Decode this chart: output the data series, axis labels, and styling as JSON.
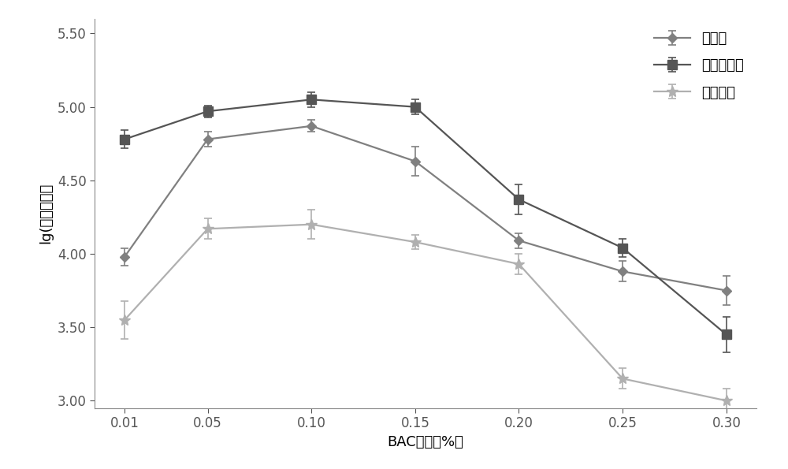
{
  "x": [
    0.01,
    0.05,
    0.1,
    0.15,
    0.2,
    0.25,
    0.3
  ],
  "x_labels": [
    "0.01",
    "0.05",
    "0.10",
    "0.15",
    "0.20",
    "0.25",
    "0.30"
  ],
  "series": [
    {
      "name": "黑曲霉",
      "y": [
        3.98,
        4.78,
        4.87,
        4.63,
        4.09,
        3.88,
        3.75
      ],
      "yerr": [
        0.06,
        0.05,
        0.04,
        0.1,
        0.05,
        0.07,
        0.1
      ],
      "color": "#808080",
      "marker": "D",
      "markersize": 6,
      "linewidth": 1.6
    },
    {
      "name": "串珠镰刀菌",
      "y": [
        4.78,
        4.97,
        5.05,
        5.0,
        4.37,
        4.04,
        3.45
      ],
      "yerr": [
        0.06,
        0.04,
        0.05,
        0.05,
        0.1,
        0.06,
        0.12
      ],
      "color": "#555555",
      "marker": "s",
      "markersize": 8,
      "linewidth": 1.6
    },
    {
      "name": "草酸青霉",
      "y": [
        3.55,
        4.17,
        4.2,
        4.08,
        3.93,
        3.15,
        3.0
      ],
      "yerr": [
        0.13,
        0.07,
        0.1,
        0.05,
        0.07,
        0.07,
        0.08
      ],
      "color": "#b0b0b0",
      "marker": "*",
      "markersize": 10,
      "linewidth": 1.6
    }
  ],
  "xlabel": "BAC浓度（%）",
  "ylabel": "lg(发光强度）",
  "ylim": [
    2.95,
    5.6
  ],
  "yticks": [
    3.0,
    3.5,
    4.0,
    4.5,
    5.0,
    5.5
  ],
  "ytick_labels": [
    "3.00",
    "3.50",
    "4.00",
    "4.50",
    "5.00",
    "5.50"
  ],
  "background_color": "#ffffff",
  "legend_loc": "upper right",
  "label_fontsize": 13,
  "tick_fontsize": 12,
  "legend_fontsize": 13
}
